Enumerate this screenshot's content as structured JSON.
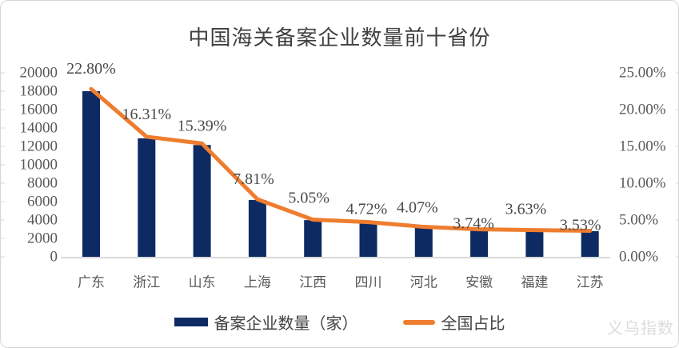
{
  "title": "中国海关备案企业数量前十省份",
  "watermark": "义乌指数",
  "legend": {
    "bar_label": "备案企业数量（家）",
    "line_label": "全国占比"
  },
  "colors": {
    "bar": "#0e2a63",
    "line": "#ee7d2f",
    "axis_line": "#d9d9d9",
    "tick_text": "#595959",
    "label_text": "#4a4a4a",
    "title_text": "#404040",
    "watermark_text": "#dcdcdc"
  },
  "chart_data": {
    "type": "bar",
    "subtype": "combo-bar-line-dual-axis",
    "title": "中国海关备案企业数量前十省份",
    "categories": [
      "广东",
      "浙江",
      "山东",
      "上海",
      "江西",
      "四川",
      "河北",
      "安徽",
      "福建",
      "江苏"
    ],
    "series": [
      {
        "name": "备案企业数量（家）",
        "type": "bar",
        "axis": "left",
        "values": [
          18000,
          12880,
          12150,
          6170,
          3990,
          3730,
          3210,
          2950,
          2870,
          2790
        ]
      },
      {
        "name": "全国占比",
        "type": "line",
        "axis": "right",
        "values": [
          22.8,
          16.31,
          15.39,
          7.81,
          5.05,
          4.72,
          4.07,
          3.74,
          3.63,
          3.53
        ],
        "data_labels": [
          "22.80%",
          "16.31%",
          "15.39%",
          "7.81%",
          "5.05%",
          "4.72%",
          "4.07%",
          "3.74%",
          "3.63%",
          "3.53%"
        ]
      }
    ],
    "left_axis": {
      "min": 0,
      "max": 20000,
      "step": 2000,
      "ticks": [
        "0",
        "2000",
        "4000",
        "6000",
        "8000",
        "10000",
        "12000",
        "14000",
        "16000",
        "18000",
        "20000"
      ]
    },
    "right_axis": {
      "min": 0,
      "max": 25,
      "step": 5,
      "ticks": [
        "0.00%",
        "5.00%",
        "10.00%",
        "15.00%",
        "20.00%",
        "25.00%"
      ]
    },
    "grid": "off",
    "legend_position": "bottom"
  }
}
